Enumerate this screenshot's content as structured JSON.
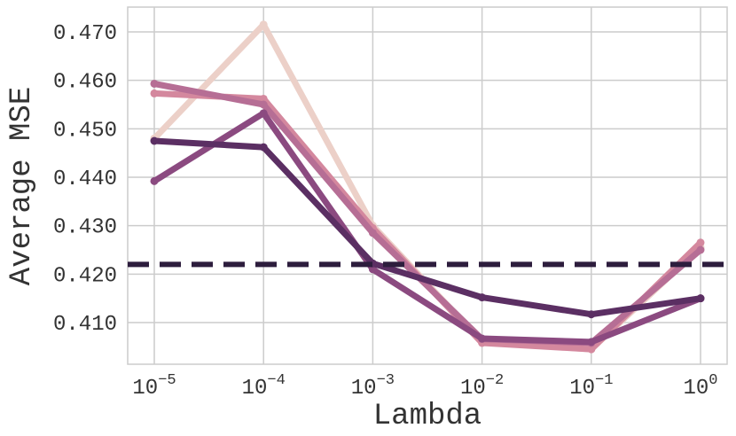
{
  "chart_data": {
    "type": "line",
    "title": "",
    "xlabel": "Lambda",
    "ylabel": "Average MSE",
    "x_scale": "log",
    "x": [
      1e-05,
      0.0001,
      0.001,
      0.01,
      0.1,
      1
    ],
    "x_tick_labels": [
      {
        "base": "10",
        "exp": "−5"
      },
      {
        "base": "10",
        "exp": "−4"
      },
      {
        "base": "10",
        "exp": "−3"
      },
      {
        "base": "10",
        "exp": "−2"
      },
      {
        "base": "10",
        "exp": "−1"
      },
      {
        "base": "10",
        "exp": "0"
      }
    ],
    "y_ticks": [
      "0.410",
      "0.420",
      "0.430",
      "0.440",
      "0.450",
      "0.460",
      "0.470"
    ],
    "y_tick_values": [
      0.41,
      0.42,
      0.43,
      0.44,
      0.45,
      0.46,
      0.47
    ],
    "ylim": [
      0.4045,
      0.475
    ],
    "grid": true,
    "series": [
      {
        "name": "series-1",
        "color": "#ecd0c8",
        "values": [
          0.448,
          0.4715,
          0.43,
          0.406,
          0.4045,
          0.4255
        ]
      },
      {
        "name": "series-2",
        "color": "#d4889e",
        "values": [
          0.4573,
          0.4562,
          0.4295,
          0.4058,
          0.4045,
          0.4265
        ]
      },
      {
        "name": "series-3",
        "color": "#b66e95",
        "values": [
          0.4593,
          0.455,
          0.4285,
          0.4066,
          0.4058,
          0.425
        ]
      },
      {
        "name": "series-4",
        "color": "#8b4a80",
        "values": [
          0.4392,
          0.4532,
          0.421,
          0.4067,
          0.406,
          0.415
        ]
      },
      {
        "name": "series-5",
        "color": "#5b2f63",
        "values": [
          0.4475,
          0.4462,
          0.4222,
          0.4152,
          0.4117,
          0.415
        ]
      }
    ],
    "reference_line": {
      "value": 0.422,
      "style": "dashed",
      "color": "#2d1d3d"
    }
  }
}
